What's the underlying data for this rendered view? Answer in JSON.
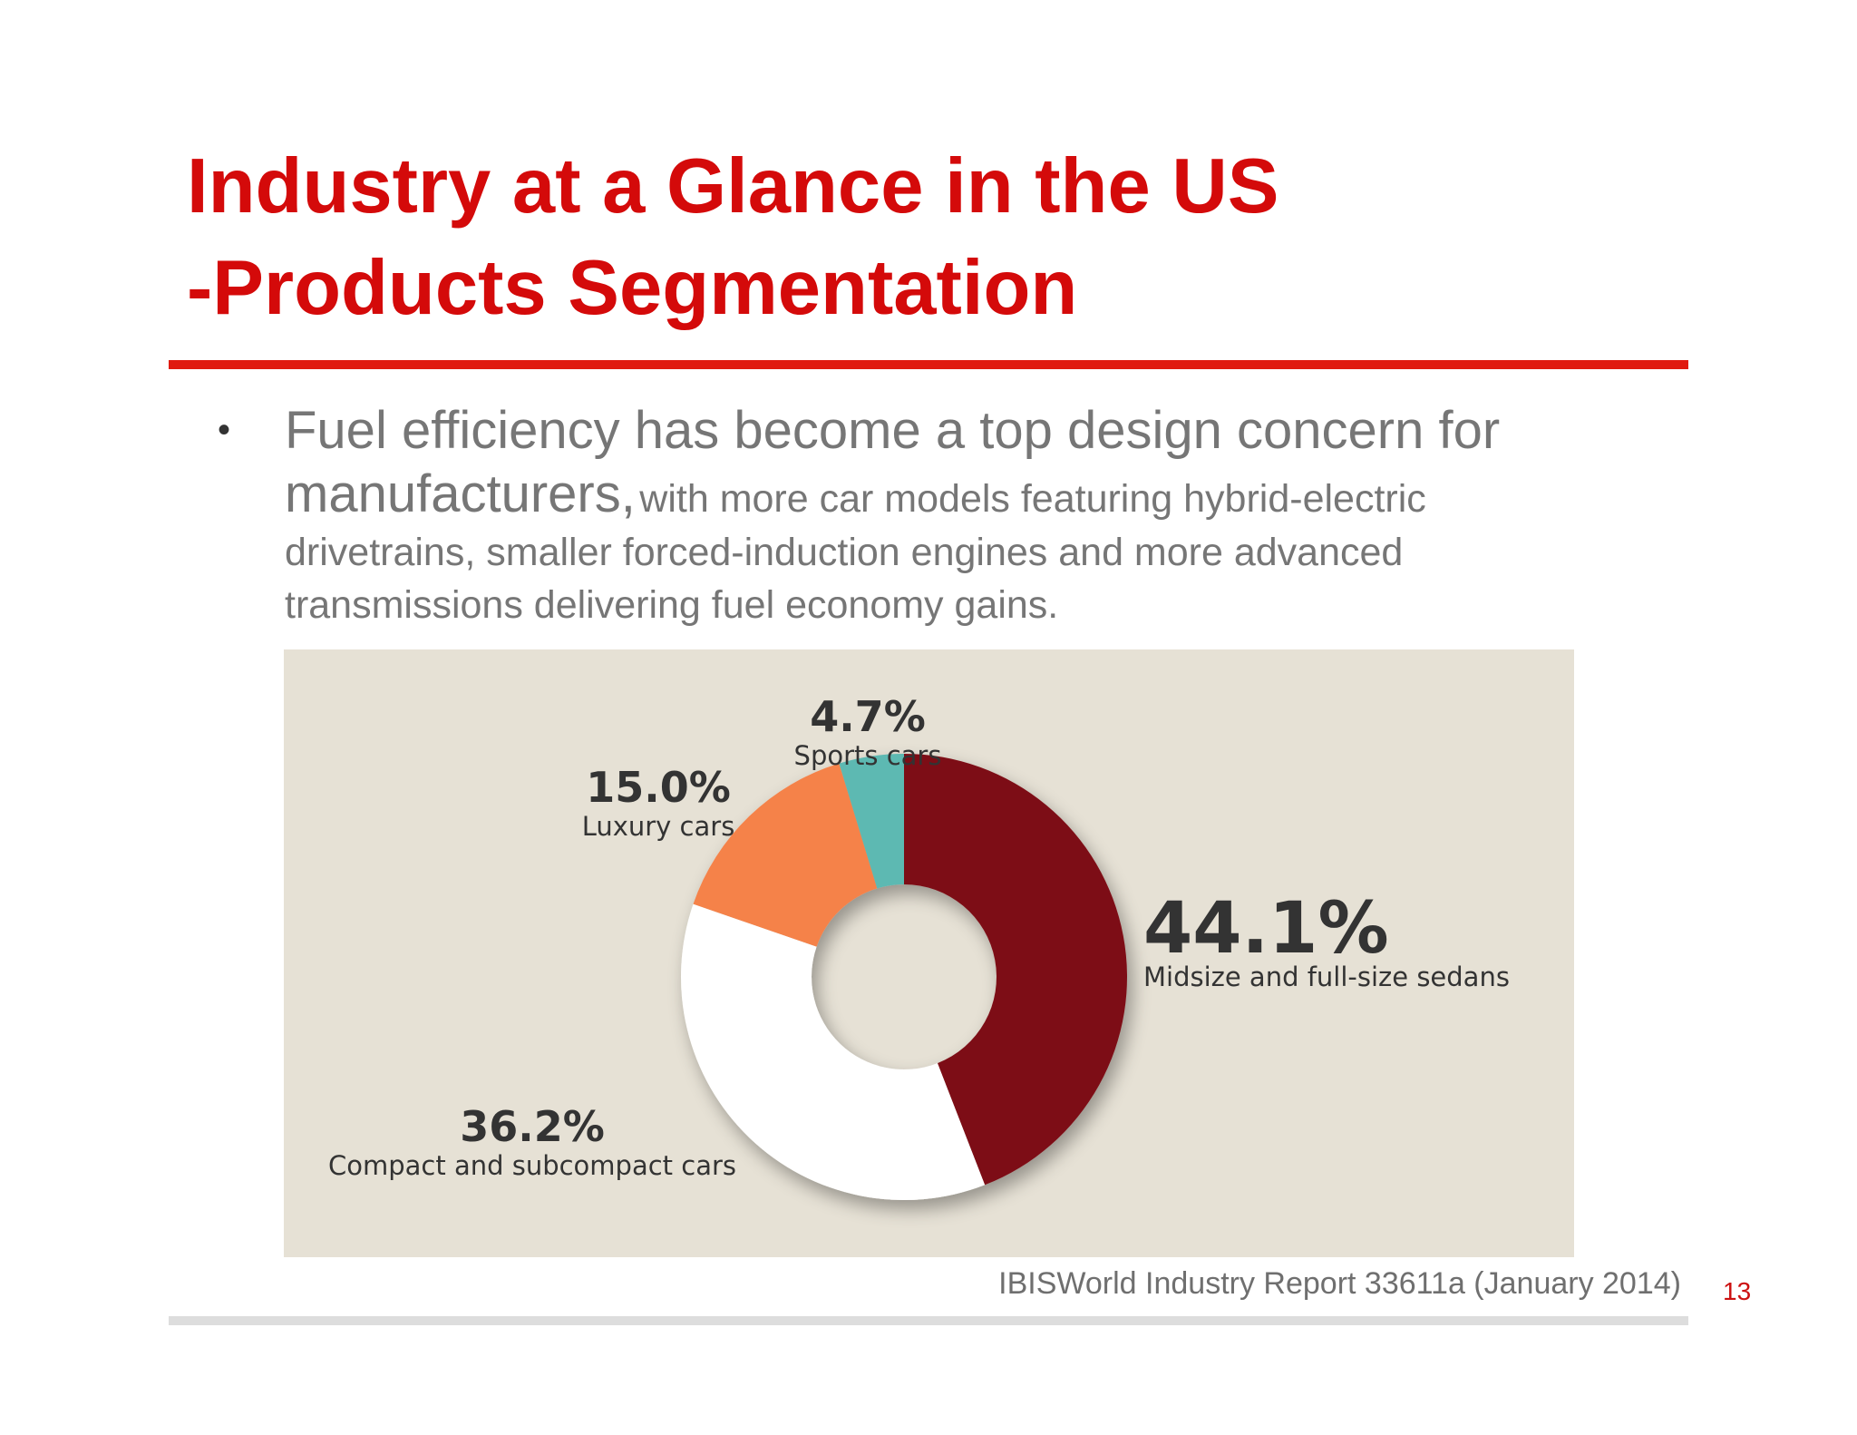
{
  "slide": {
    "title_line1": "Industry at a Glance in the US",
    "title_line2": "-Products Segmentation",
    "bullet": {
      "marker": "•",
      "lead": "Fuel efficiency has become a top design concern for manufacturers,",
      "rest": "with more car models featuring hybrid-electric drivetrains, smaller forced-induction engines and more advanced transmissions delivering fuel economy gains."
    },
    "source": "IBISWorld Industry Report 33611a (January 2014)",
    "page_number": "13",
    "colors": {
      "title": "#d40a0a",
      "rule": "#e01a0f",
      "panel": "#e6e1d5"
    }
  },
  "chart_data": {
    "type": "pie",
    "style": "donut",
    "slices": [
      {
        "label": "Midsize and full-size sedans",
        "value_label": "44.1%",
        "value": 44.1,
        "color": "#7d0f17"
      },
      {
        "label": "Compact and subcompact cars",
        "value_label": "36.2%",
        "value": 36.2,
        "color": "#ffffff"
      },
      {
        "label": "Luxury cars",
        "value_label": "15.0%",
        "value": 15.0,
        "color": "#f5824a"
      },
      {
        "label": "Sports cars",
        "value_label": "4.7%",
        "value": 4.7,
        "color": "#5db9b2"
      }
    ],
    "start_angle_deg": 0,
    "direction": "clockwise",
    "legend": "none"
  }
}
